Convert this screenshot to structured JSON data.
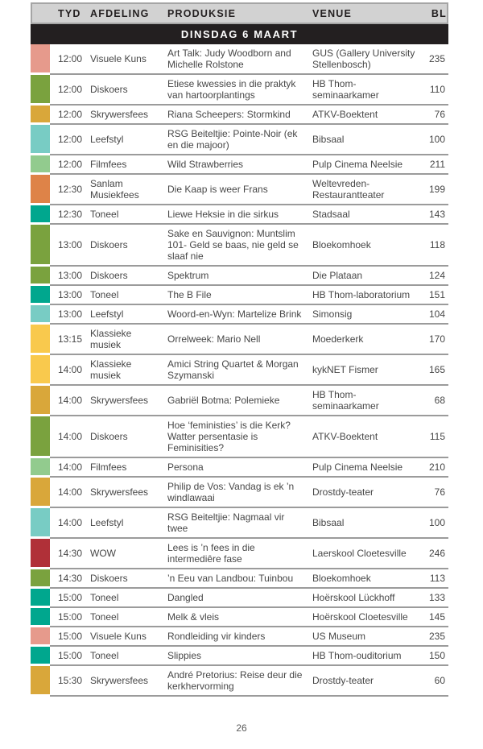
{
  "page": {
    "number": "26"
  },
  "table": {
    "columns": [
      "TYD",
      "AFDELING",
      "PRODUKSIE",
      "VENUE",
      "BL"
    ],
    "day_header": "DINSDAG 6 MAART",
    "header_bg": "#d2d2d2",
    "banner_bg": "#231f20",
    "separator_color": "#9b9b9b",
    "category_colors": {
      "Visuele Kuns": "#e69a8c",
      "Diskoers": "#7aa23e",
      "Skrywersfees": "#d9a73a",
      "Leefstyl": "#78ccc4",
      "Filmfees": "#92cb8e",
      "Sanlam Musiekfees": "#de8348",
      "Toneel": "#00a78e",
      "Klassieke musiek": "#f9c94d",
      "WOW": "#b03038"
    },
    "rows": [
      {
        "tyd": "12:00",
        "afdeling": "Visuele Kuns",
        "produksie": "Art Talk: Judy Woodborn and Michelle Rolstone",
        "venue": "GUS (Gallery University Stellenbosch)",
        "bl": "235"
      },
      {
        "tyd": "12:00",
        "afdeling": "Diskoers",
        "produksie": "Etiese kwessies in die praktyk van hartoorplantings",
        "venue": "HB Thom-seminaarkamer",
        "bl": "110"
      },
      {
        "tyd": "12:00",
        "afdeling": "Skrywersfees",
        "produksie": "Riana Scheepers: Stormkind",
        "venue": "ATKV-Boektent",
        "bl": "76"
      },
      {
        "tyd": "12:00",
        "afdeling": "Leefstyl",
        "produksie": "RSG Beiteltjie: Pointe-Noir (ek en die majoor)",
        "venue": "Bibsaal",
        "bl": "100"
      },
      {
        "tyd": "12:00",
        "afdeling": "Filmfees",
        "produksie": "Wild Strawberries",
        "venue": "Pulp Cinema Neelsie",
        "bl": "211"
      },
      {
        "tyd": "12:30",
        "afdeling": "Sanlam Musiekfees",
        "produksie": "Die Kaap is weer Frans",
        "venue": "Weltevreden-Restaurantteater",
        "bl": "199"
      },
      {
        "tyd": "12:30",
        "afdeling": "Toneel",
        "produksie": "Liewe Heksie in die sirkus",
        "venue": "Stadsaal",
        "bl": "143"
      },
      {
        "tyd": "13:00",
        "afdeling": "Diskoers",
        "produksie": "Sake en Sauvignon: Muntslim 101- Geld se baas, nie geld se slaaf nie",
        "venue": "Bloekomhoek",
        "bl": "118"
      },
      {
        "tyd": "13:00",
        "afdeling": "Diskoers",
        "produksie": "Spektrum",
        "venue": "Die Plataan",
        "bl": "124"
      },
      {
        "tyd": "13:00",
        "afdeling": "Toneel",
        "produksie": "The B File",
        "venue": "HB Thom-laboratorium",
        "bl": "151"
      },
      {
        "tyd": "13:00",
        "afdeling": "Leefstyl",
        "produksie": "Woord-en-Wyn: Martelize Brink",
        "venue": "Simonsig",
        "bl": "104"
      },
      {
        "tyd": "13:15",
        "afdeling": "Klassieke musiek",
        "produksie": "Orrelweek: Mario Nell",
        "venue": "Moederkerk",
        "bl": "170"
      },
      {
        "tyd": "14:00",
        "afdeling": "Klassieke musiek",
        "produksie": "Amici String Quartet & Morgan Szymanski",
        "venue": "kykNET Fismer",
        "bl": "165"
      },
      {
        "tyd": "14:00",
        "afdeling": "Skrywersfees",
        "produksie": "Gabriël Botma: Polemieke",
        "venue": "HB Thom-seminaarkamer",
        "bl": "68"
      },
      {
        "tyd": "14:00",
        "afdeling": "Diskoers",
        "produksie": "Hoe ‘feministies’ is die Kerk? Watter persentasie is Feminisities?",
        "venue": "ATKV-Boektent",
        "bl": "115"
      },
      {
        "tyd": "14:00",
        "afdeling": "Filmfees",
        "produksie": "Persona",
        "venue": "Pulp Cinema Neelsie",
        "bl": "210"
      },
      {
        "tyd": "14:00",
        "afdeling": "Skrywersfees",
        "produksie": "Philip de Vos: Vandag is ek ’n windlawaai",
        "venue": "Drostdy-teater",
        "bl": "76"
      },
      {
        "tyd": "14:00",
        "afdeling": "Leefstyl",
        "produksie": "RSG Beiteltjie: Nagmaal vir twee",
        "venue": "Bibsaal",
        "bl": "100"
      },
      {
        "tyd": "14:30",
        "afdeling": "WOW",
        "produksie": "Lees is ’n fees in die intermediêre fase",
        "venue": "Laerskool Cloetesville",
        "bl": "246"
      },
      {
        "tyd": "14:30",
        "afdeling": "Diskoers",
        "produksie": "’n Eeu van Landbou: Tuinbou",
        "venue": "Bloekomhoek",
        "bl": "113"
      },
      {
        "tyd": "15:00",
        "afdeling": "Toneel",
        "produksie": "Dangled",
        "venue": "Hoërskool Lückhoff",
        "bl": "133"
      },
      {
        "tyd": "15:00",
        "afdeling": "Toneel",
        "produksie": "Melk & vleis",
        "venue": "Hoërskool Cloetesville",
        "bl": "145"
      },
      {
        "tyd": "15:00",
        "afdeling": "Visuele Kuns",
        "produksie": "Rondleiding vir kinders",
        "venue": "US Museum",
        "bl": "235"
      },
      {
        "tyd": "15:00",
        "afdeling": "Toneel",
        "produksie": "Slippies",
        "venue": "HB Thom-ouditorium",
        "bl": "150"
      },
      {
        "tyd": "15:30",
        "afdeling": "Skrywersfees",
        "produksie": "André Pretorius: Reise deur die kerkhervorming",
        "venue": "Drostdy-teater",
        "bl": "60"
      }
    ]
  }
}
